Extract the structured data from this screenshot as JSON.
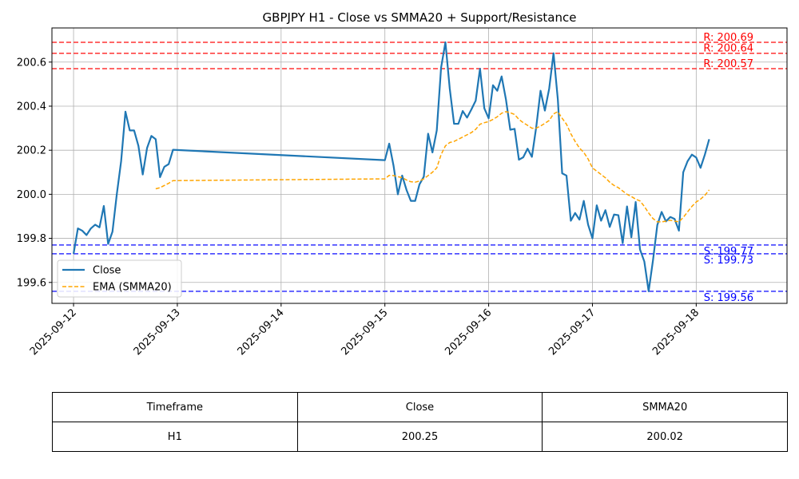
{
  "chart_data": {
    "type": "line",
    "title": "GBPJPY H1 - Close vs SMMA20 + Support/Resistance",
    "xlabel": "",
    "ylabel": "",
    "ylim": [
      199.505,
      200.755
    ],
    "xlim": [
      "2025-09-11 19:00",
      "2025-09-18 21:00"
    ],
    "grid": true,
    "legend_position": "center-left",
    "x_tick_labels": [
      "2025-09-12",
      "2025-09-13",
      "2025-09-14",
      "2025-09-15",
      "2025-09-16",
      "2025-09-17",
      "2025-09-18"
    ],
    "y_tick_labels": [
      "199.6",
      "199.8",
      "200.0",
      "200.2",
      "200.4",
      "200.6"
    ],
    "series": [
      {
        "name": "Close",
        "color": "#1f77b4",
        "style": "solid",
        "points": [
          [
            "2025-09-12 00:00",
            199.73
          ],
          [
            "2025-09-12 01:00",
            199.845
          ],
          [
            "2025-09-12 02:00",
            199.835
          ],
          [
            "2025-09-12 03:00",
            199.815
          ],
          [
            "2025-09-12 04:00",
            199.845
          ],
          [
            "2025-09-12 05:00",
            199.862
          ],
          [
            "2025-09-12 06:00",
            199.85
          ],
          [
            "2025-09-12 07:00",
            199.947
          ],
          [
            "2025-09-12 08:00",
            199.775
          ],
          [
            "2025-09-12 09:00",
            199.83
          ],
          [
            "2025-09-12 10:00",
            200.0
          ],
          [
            "2025-09-12 11:00",
            200.15
          ],
          [
            "2025-09-12 12:00",
            200.375
          ],
          [
            "2025-09-12 13:00",
            200.29
          ],
          [
            "2025-09-12 14:00",
            200.29
          ],
          [
            "2025-09-12 15:00",
            200.22
          ],
          [
            "2025-09-12 16:00",
            200.09
          ],
          [
            "2025-09-12 17:00",
            200.21
          ],
          [
            "2025-09-12 18:00",
            200.265
          ],
          [
            "2025-09-12 19:00",
            200.25
          ],
          [
            "2025-09-12 20:00",
            200.078
          ],
          [
            "2025-09-12 21:00",
            200.125
          ],
          [
            "2025-09-12 22:00",
            200.137
          ],
          [
            "2025-09-12 23:00",
            200.202
          ],
          [
            "2025-09-15 00:00",
            200.155
          ],
          [
            "2025-09-15 01:00",
            200.23
          ],
          [
            "2025-09-15 02:00",
            200.13
          ],
          [
            "2025-09-15 03:00",
            200.0
          ],
          [
            "2025-09-15 04:00",
            200.085
          ],
          [
            "2025-09-15 05:00",
            200.02
          ],
          [
            "2025-09-15 06:00",
            199.97
          ],
          [
            "2025-09-15 07:00",
            199.97
          ],
          [
            "2025-09-15 08:00",
            200.045
          ],
          [
            "2025-09-15 09:00",
            200.08
          ],
          [
            "2025-09-15 10:00",
            200.275
          ],
          [
            "2025-09-15 11:00",
            200.19
          ],
          [
            "2025-09-15 12:00",
            200.29
          ],
          [
            "2025-09-15 13:00",
            200.575
          ],
          [
            "2025-09-15 14:00",
            200.69
          ],
          [
            "2025-09-15 15:00",
            200.48
          ],
          [
            "2025-09-15 16:00",
            200.32
          ],
          [
            "2025-09-15 17:00",
            200.32
          ],
          [
            "2025-09-15 18:00",
            200.378
          ],
          [
            "2025-09-15 19:00",
            200.348
          ],
          [
            "2025-09-15 20:00",
            200.385
          ],
          [
            "2025-09-15 21:00",
            200.425
          ],
          [
            "2025-09-15 22:00",
            200.57
          ],
          [
            "2025-09-15 23:00",
            200.39
          ],
          [
            "2025-09-16 00:00",
            200.345
          ],
          [
            "2025-09-16 01:00",
            200.495
          ],
          [
            "2025-09-16 02:00",
            200.47
          ],
          [
            "2025-09-16 03:00",
            200.535
          ],
          [
            "2025-09-16 04:00",
            200.43
          ],
          [
            "2025-09-16 05:00",
            200.293
          ],
          [
            "2025-09-16 06:00",
            200.297
          ],
          [
            "2025-09-16 07:00",
            200.157
          ],
          [
            "2025-09-16 08:00",
            200.168
          ],
          [
            "2025-09-16 09:00",
            200.207
          ],
          [
            "2025-09-16 10:00",
            200.17
          ],
          [
            "2025-09-16 11:00",
            200.305
          ],
          [
            "2025-09-16 12:00",
            200.47
          ],
          [
            "2025-09-16 13:00",
            200.38
          ],
          [
            "2025-09-16 14:00",
            200.48
          ],
          [
            "2025-09-16 15:00",
            200.64
          ],
          [
            "2025-09-16 16:00",
            200.43
          ],
          [
            "2025-09-16 17:00",
            200.095
          ],
          [
            "2025-09-16 18:00",
            200.085
          ],
          [
            "2025-09-16 19:00",
            199.88
          ],
          [
            "2025-09-16 20:00",
            199.915
          ],
          [
            "2025-09-16 21:00",
            199.885
          ],
          [
            "2025-09-16 22:00",
            199.97
          ],
          [
            "2025-09-16 23:00",
            199.862
          ],
          [
            "2025-09-17 00:00",
            199.8
          ],
          [
            "2025-09-17 01:00",
            199.95
          ],
          [
            "2025-09-17 02:00",
            199.88
          ],
          [
            "2025-09-17 03:00",
            199.928
          ],
          [
            "2025-09-17 04:00",
            199.852
          ],
          [
            "2025-09-17 05:00",
            199.908
          ],
          [
            "2025-09-17 06:00",
            199.905
          ],
          [
            "2025-09-17 07:00",
            199.778
          ],
          [
            "2025-09-17 08:00",
            199.945
          ],
          [
            "2025-09-17 09:00",
            199.805
          ],
          [
            "2025-09-17 10:00",
            199.965
          ],
          [
            "2025-09-17 11:00",
            199.75
          ],
          [
            "2025-09-17 12:00",
            199.695
          ],
          [
            "2025-09-17 13:00",
            199.56
          ],
          [
            "2025-09-17 14:00",
            199.7
          ],
          [
            "2025-09-17 15:00",
            199.86
          ],
          [
            "2025-09-17 16:00",
            199.92
          ],
          [
            "2025-09-17 17:00",
            199.877
          ],
          [
            "2025-09-17 18:00",
            199.897
          ],
          [
            "2025-09-17 19:00",
            199.888
          ],
          [
            "2025-09-17 20:00",
            199.835
          ],
          [
            "2025-09-17 21:00",
            200.1
          ],
          [
            "2025-09-17 22:00",
            200.15
          ],
          [
            "2025-09-17 23:00",
            200.18
          ],
          [
            "2025-09-18 00:00",
            200.167
          ],
          [
            "2025-09-18 01:00",
            200.12
          ],
          [
            "2025-09-18 02:00",
            200.18
          ],
          [
            "2025-09-18 03:00",
            200.25
          ]
        ]
      },
      {
        "name": "EMA (SMMA20)",
        "color": "#ffa500",
        "style": "dashed",
        "points": [
          [
            "2025-09-12 19:00",
            200.025
          ],
          [
            "2025-09-12 20:00",
            200.03
          ],
          [
            "2025-09-12 21:00",
            200.04
          ],
          [
            "2025-09-12 22:00",
            200.05
          ],
          [
            "2025-09-12 23:00",
            200.062
          ],
          [
            "2025-09-15 00:00",
            200.07
          ],
          [
            "2025-09-15 01:00",
            200.086
          ],
          [
            "2025-09-15 02:00",
            200.085
          ],
          [
            "2025-09-15 03:00",
            200.08
          ],
          [
            "2025-09-15 04:00",
            200.076
          ],
          [
            "2025-09-15 05:00",
            200.065
          ],
          [
            "2025-09-15 06:00",
            200.057
          ],
          [
            "2025-09-15 07:00",
            200.055
          ],
          [
            "2025-09-15 08:00",
            200.06
          ],
          [
            "2025-09-15 09:00",
            200.07
          ],
          [
            "2025-09-15 10:00",
            200.085
          ],
          [
            "2025-09-15 11:00",
            200.1
          ],
          [
            "2025-09-15 12:00",
            200.12
          ],
          [
            "2025-09-15 13:00",
            200.18
          ],
          [
            "2025-09-15 14:00",
            200.22
          ],
          [
            "2025-09-15 15:00",
            200.235
          ],
          [
            "2025-09-15 16:00",
            200.24
          ],
          [
            "2025-09-15 17:00",
            200.25
          ],
          [
            "2025-09-15 18:00",
            200.26
          ],
          [
            "2025-09-15 19:00",
            200.27
          ],
          [
            "2025-09-15 20:00",
            200.28
          ],
          [
            "2025-09-15 21:00",
            200.295
          ],
          [
            "2025-09-15 22:00",
            200.318
          ],
          [
            "2025-09-15 23:00",
            200.325
          ],
          [
            "2025-09-16 00:00",
            200.33
          ],
          [
            "2025-09-16 01:00",
            200.34
          ],
          [
            "2025-09-16 02:00",
            200.352
          ],
          [
            "2025-09-16 03:00",
            200.368
          ],
          [
            "2025-09-16 04:00",
            200.375
          ],
          [
            "2025-09-16 05:00",
            200.37
          ],
          [
            "2025-09-16 06:00",
            200.362
          ],
          [
            "2025-09-16 07:00",
            200.34
          ],
          [
            "2025-09-16 08:00",
            200.325
          ],
          [
            "2025-09-16 09:00",
            200.313
          ],
          [
            "2025-09-16 10:00",
            200.3
          ],
          [
            "2025-09-16 11:00",
            200.3
          ],
          [
            "2025-09-16 12:00",
            200.31
          ],
          [
            "2025-09-16 13:00",
            200.322
          ],
          [
            "2025-09-16 14:00",
            200.335
          ],
          [
            "2025-09-16 15:00",
            200.365
          ],
          [
            "2025-09-16 16:00",
            200.375
          ],
          [
            "2025-09-16 17:00",
            200.345
          ],
          [
            "2025-09-16 18:00",
            200.318
          ],
          [
            "2025-09-16 19:00",
            200.275
          ],
          [
            "2025-09-16 20:00",
            200.24
          ],
          [
            "2025-09-16 21:00",
            200.21
          ],
          [
            "2025-09-16 22:00",
            200.19
          ],
          [
            "2025-09-16 23:00",
            200.16
          ],
          [
            "2025-09-17 00:00",
            200.12
          ],
          [
            "2025-09-17 01:00",
            200.105
          ],
          [
            "2025-09-17 02:00",
            200.09
          ],
          [
            "2025-09-17 03:00",
            200.075
          ],
          [
            "2025-09-17 04:00",
            200.055
          ],
          [
            "2025-09-17 05:00",
            200.04
          ],
          [
            "2025-09-17 06:00",
            200.03
          ],
          [
            "2025-09-17 07:00",
            200.015
          ],
          [
            "2025-09-17 08:00",
            200.0
          ],
          [
            "2025-09-17 09:00",
            199.99
          ],
          [
            "2025-09-17 10:00",
            199.978
          ],
          [
            "2025-09-17 11:00",
            199.97
          ],
          [
            "2025-09-17 12:00",
            199.945
          ],
          [
            "2025-09-17 13:00",
            199.915
          ],
          [
            "2025-09-17 14:00",
            199.89
          ],
          [
            "2025-09-17 15:00",
            199.875
          ],
          [
            "2025-09-17 16:00",
            199.875
          ],
          [
            "2025-09-17 17:00",
            199.878
          ],
          [
            "2025-09-17 18:00",
            199.882
          ],
          [
            "2025-09-17 19:00",
            199.878
          ],
          [
            "2025-09-17 20:00",
            199.875
          ],
          [
            "2025-09-17 21:00",
            199.895
          ],
          [
            "2025-09-17 22:00",
            199.92
          ],
          [
            "2025-09-17 23:00",
            199.945
          ],
          [
            "2025-09-18 00:00",
            199.965
          ],
          [
            "2025-09-18 01:00",
            199.978
          ],
          [
            "2025-09-18 02:00",
            199.995
          ],
          [
            "2025-09-18 03:00",
            200.02
          ]
        ]
      }
    ],
    "hlines": [
      {
        "kind": "resistance",
        "value": 200.69,
        "label": "R: 200.69",
        "color": "#ff3333"
      },
      {
        "kind": "resistance",
        "value": 200.64,
        "label": "R: 200.64",
        "color": "#ff3333"
      },
      {
        "kind": "resistance",
        "value": 200.57,
        "label": "R: 200.57",
        "color": "#ff3333"
      },
      {
        "kind": "support",
        "value": 199.77,
        "label": "S: 199.77",
        "color": "#3333ff"
      },
      {
        "kind": "support",
        "value": 199.73,
        "label": "S: 199.73",
        "color": "#3333ff"
      },
      {
        "kind": "support",
        "value": 199.56,
        "label": "S: 199.56",
        "color": "#3333ff"
      }
    ]
  },
  "table": {
    "headers": [
      "Timeframe",
      "Close",
      "SMMA20"
    ],
    "rows": [
      [
        "H1",
        "200.25",
        "200.02"
      ]
    ]
  }
}
